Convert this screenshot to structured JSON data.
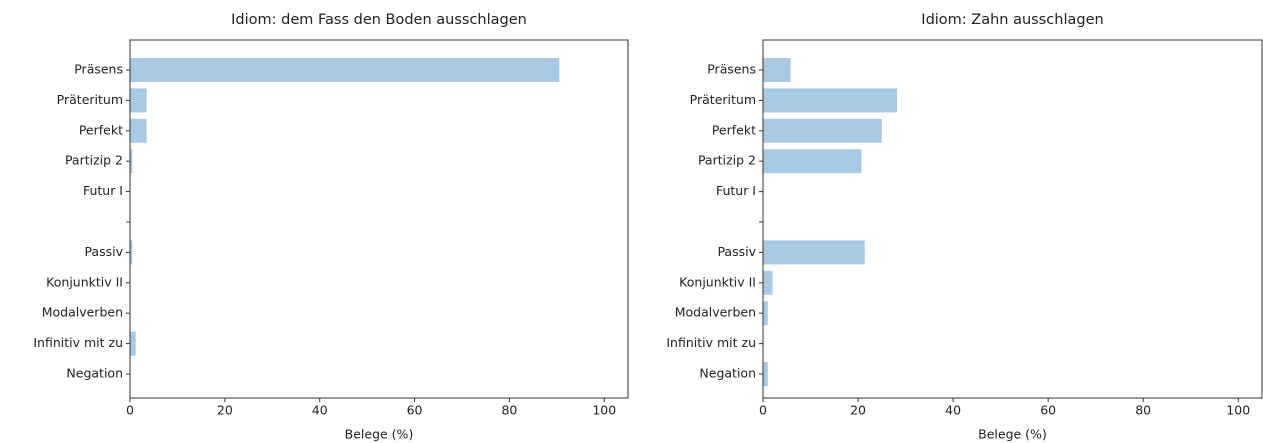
{
  "chart_data": [
    {
      "type": "barh",
      "title": "Idiom: dem Fass den Boden ausschlagen",
      "xlabel": "Belege (%)",
      "categories": [
        "Präsens",
        "Präteritum",
        "Perfekt",
        "Partizip 2",
        "Futur I",
        null,
        "Passiv",
        "Konjunktiv II",
        "Modalverben",
        "Infinitiv mit zu",
        "Negation"
      ],
      "values": [
        90.5,
        3.5,
        3.5,
        0.5,
        0,
        null,
        0.5,
        0,
        0,
        1.2,
        0
      ],
      "color": "#a7c9e4",
      "xlim": [
        0,
        105
      ],
      "xticks": [
        0,
        20,
        40,
        60,
        80,
        100
      ],
      "grid": false
    },
    {
      "type": "barh",
      "title": "Idiom: Zahn ausschlagen",
      "xlabel": "Belege (%)",
      "categories": [
        "Präsens",
        "Präteritum",
        "Perfekt",
        "Partizip 2",
        "Futur I",
        null,
        "Passiv",
        "Konjunktiv II",
        "Modalverben",
        "Infinitiv mit zu",
        "Negation"
      ],
      "values": [
        5.8,
        28.2,
        25,
        20.7,
        0,
        null,
        21.4,
        2,
        1,
        0,
        1
      ],
      "color": "#a7c9e4",
      "xlim": [
        0,
        105
      ],
      "xticks": [
        0,
        20,
        40,
        60,
        80,
        100
      ],
      "grid": false
    }
  ]
}
